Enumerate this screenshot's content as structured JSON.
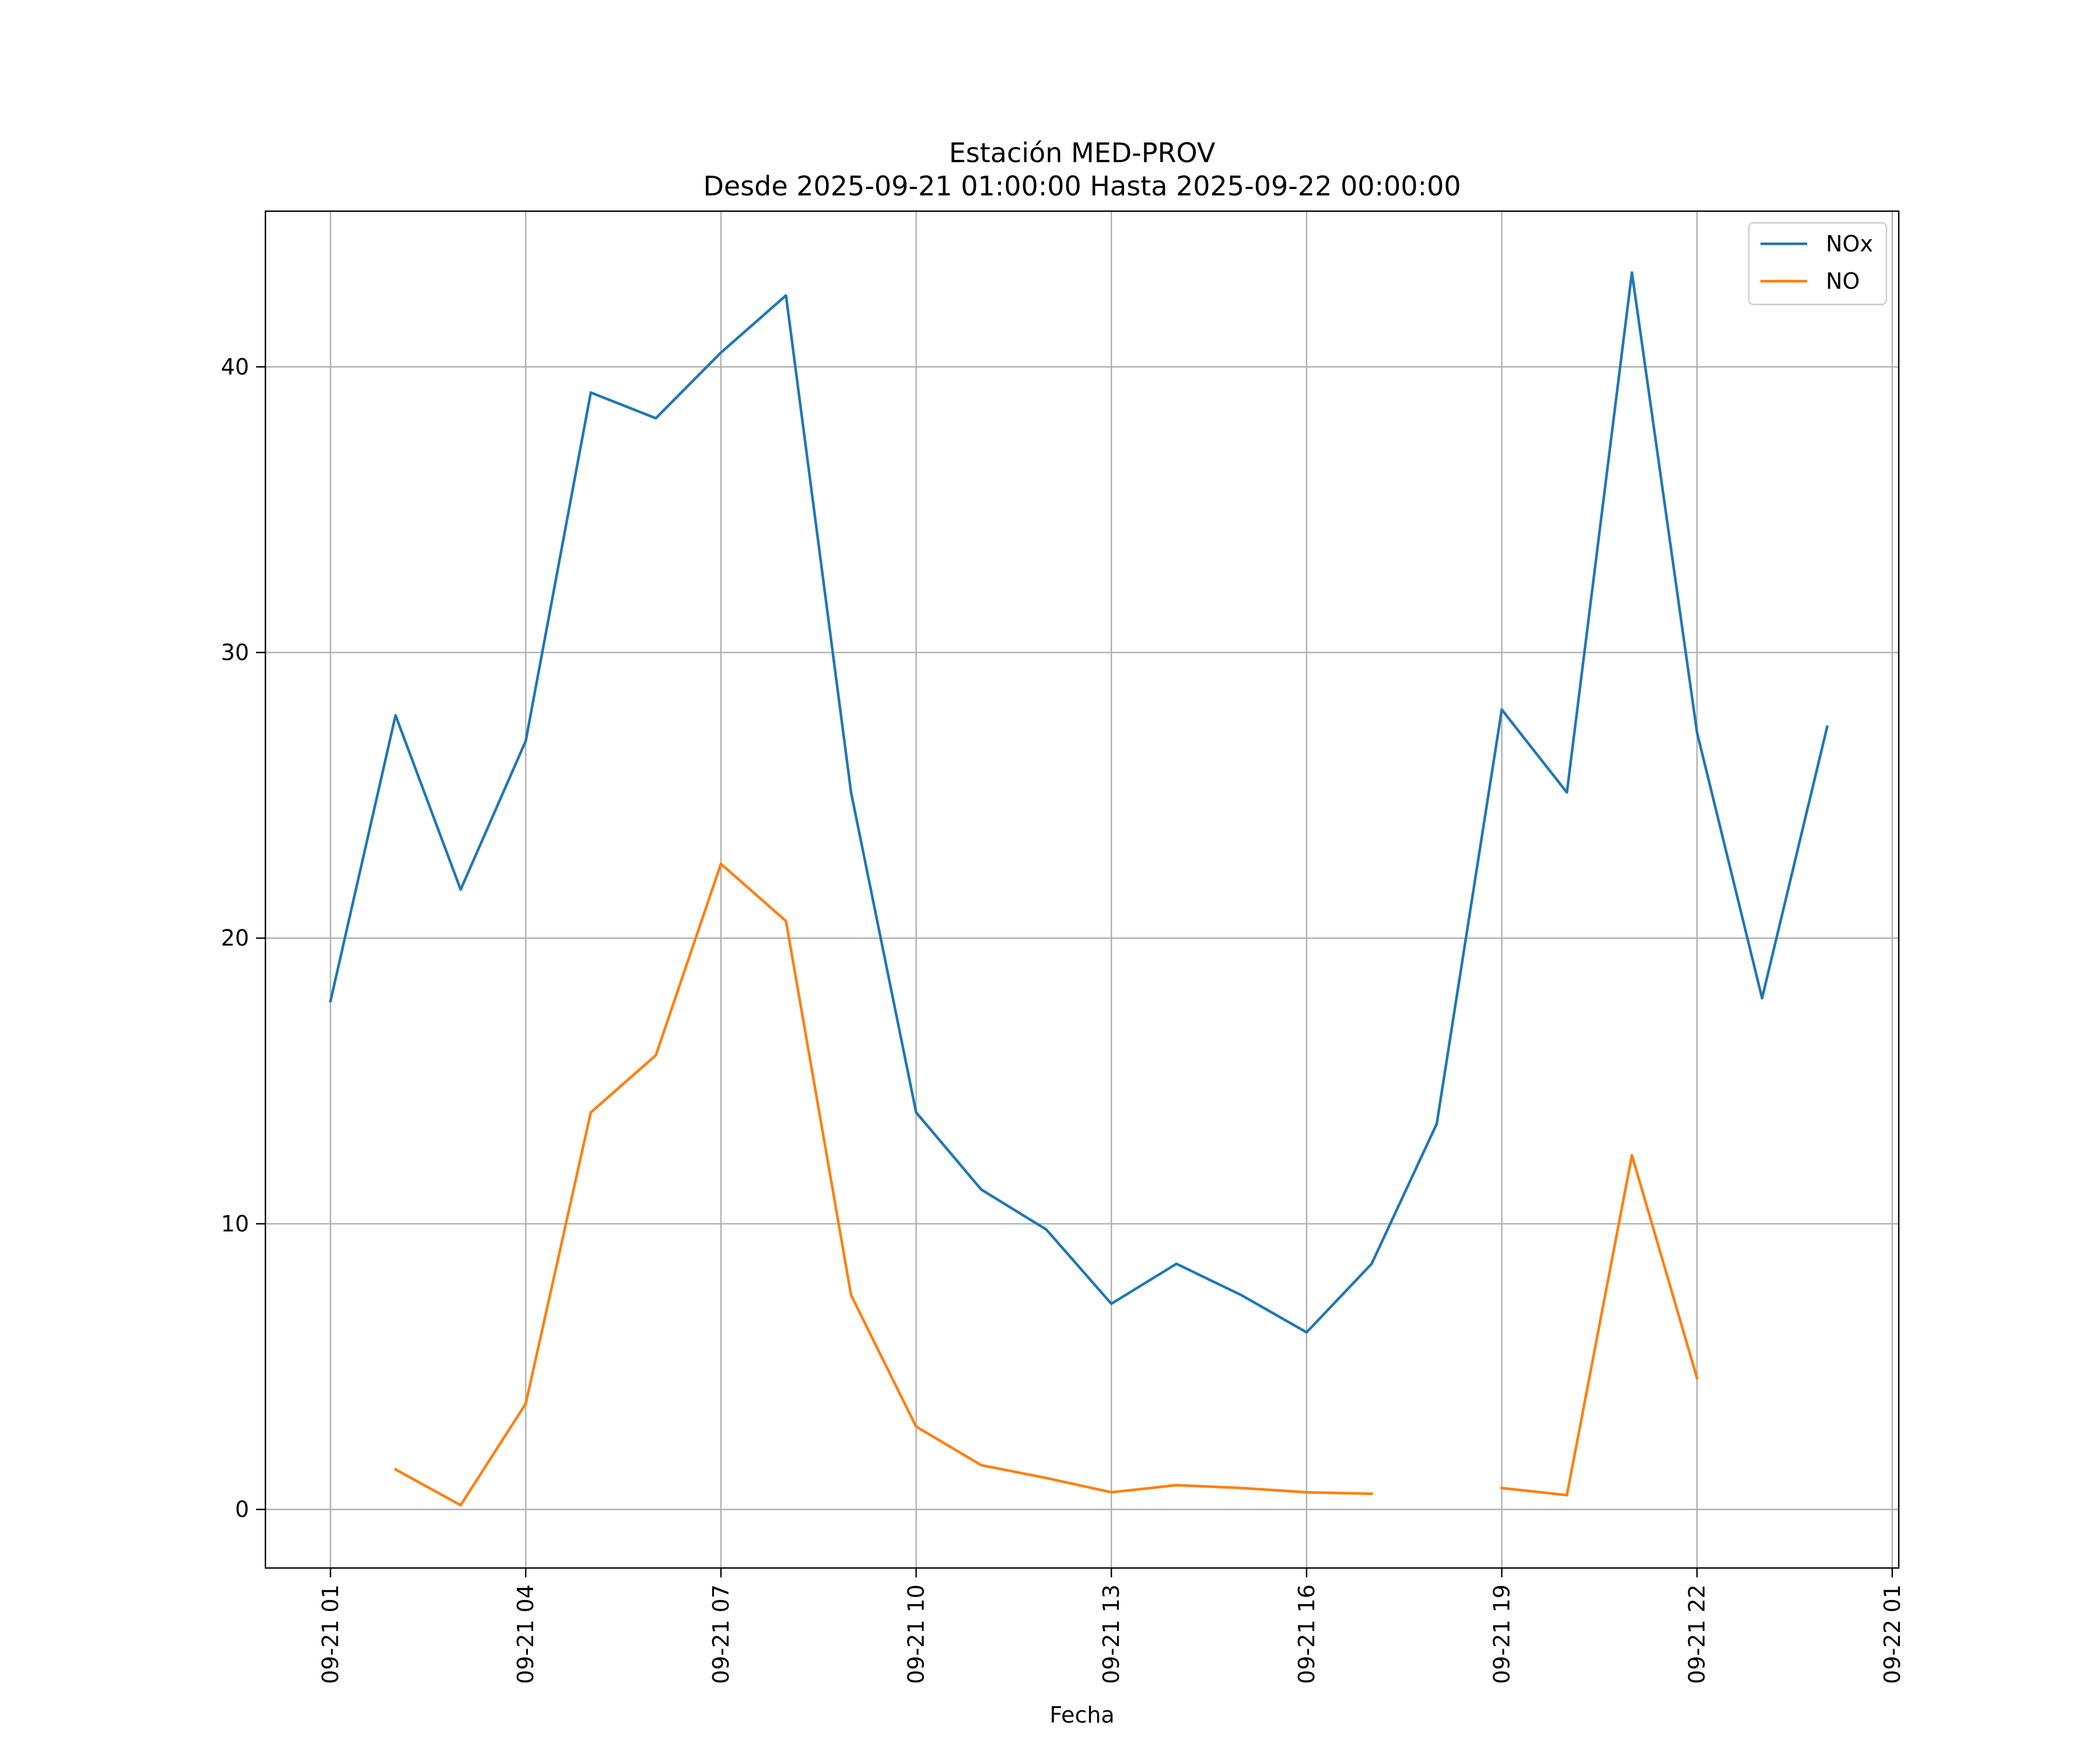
{
  "chart_data": {
    "type": "line",
    "title": "Estación MED-PROV",
    "subtitle": "Desde 2025-09-21 01:00:00 Hasta 2025-09-22 00:00:00",
    "xlabel": "Fecha",
    "ylabel": "",
    "x": [
      "2025-09-21 01:00",
      "2025-09-21 02:00",
      "2025-09-21 03:00",
      "2025-09-21 04:00",
      "2025-09-21 05:00",
      "2025-09-21 06:00",
      "2025-09-21 07:00",
      "2025-09-21 08:00",
      "2025-09-21 09:00",
      "2025-09-21 10:00",
      "2025-09-21 11:00",
      "2025-09-21 12:00",
      "2025-09-21 13:00",
      "2025-09-21 14:00",
      "2025-09-21 15:00",
      "2025-09-21 16:00",
      "2025-09-21 17:00",
      "2025-09-21 18:00",
      "2025-09-21 19:00",
      "2025-09-21 20:00",
      "2025-09-21 21:00",
      "2025-09-21 22:00",
      "2025-09-21 23:00",
      "2025-09-22 00:00"
    ],
    "series": [
      {
        "name": "NOx",
        "color": "#1f77b4",
        "values": [
          17.8,
          27.8,
          21.7,
          26.9,
          39.1,
          38.2,
          40.5,
          42.5,
          25.1,
          13.9,
          11.2,
          9.8,
          7.2,
          8.6,
          7.5,
          6.2,
          8.6,
          13.5,
          28.0,
          25.1,
          43.3,
          27.2,
          17.9,
          27.4
        ]
      },
      {
        "name": "NO",
        "color": "#ff7f0e",
        "values": [
          null,
          1.4,
          0.15,
          3.7,
          13.9,
          15.9,
          22.6,
          20.6,
          7.5,
          2.9,
          1.55,
          1.1,
          0.6,
          0.85,
          0.75,
          0.6,
          0.55,
          null,
          0.75,
          0.5,
          12.4,
          4.6,
          null,
          null
        ]
      }
    ],
    "xticks": [
      {
        "at": "2025-09-21 01:00",
        "label": "09-21 01"
      },
      {
        "at": "2025-09-21 04:00",
        "label": "09-21 04"
      },
      {
        "at": "2025-09-21 07:00",
        "label": "09-21 07"
      },
      {
        "at": "2025-09-21 10:00",
        "label": "09-21 10"
      },
      {
        "at": "2025-09-21 13:00",
        "label": "09-21 13"
      },
      {
        "at": "2025-09-21 16:00",
        "label": "09-21 16"
      },
      {
        "at": "2025-09-21 19:00",
        "label": "09-21 19"
      },
      {
        "at": "2025-09-21 22:00",
        "label": "09-21 22"
      },
      {
        "at": "2025-09-22 01:00",
        "label": "09-22 01"
      }
    ],
    "yticks": [
      0,
      10,
      20,
      30,
      40
    ],
    "xlim": [
      "2025-09-21 00:00",
      "2025-09-22 01:06"
    ],
    "ylim": [
      -2.05,
      45.45
    ],
    "grid": true,
    "legend_position": "top-right"
  }
}
